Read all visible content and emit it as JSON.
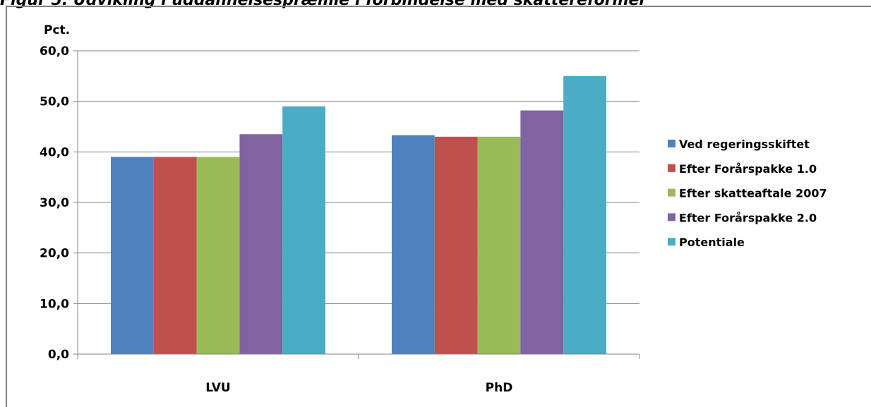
{
  "figure": {
    "title": "Figur 5. Udvikling i uddannelsespræmie i forbindelse med skattereformer"
  },
  "chart_data": {
    "type": "bar",
    "ylabel": "Pct.",
    "xlabel": "",
    "ylim": [
      0,
      60
    ],
    "yticks": [
      "0,0",
      "10,0",
      "20,0",
      "30,0",
      "40,0",
      "50,0",
      "60,0"
    ],
    "grid": true,
    "legend_position": "right",
    "categories": [
      "LVU",
      "PhD"
    ],
    "series": [
      {
        "name": "Ved regeringsskiftet",
        "color": "#4f81bd",
        "values": [
          39.0,
          43.3
        ]
      },
      {
        "name": "Efter Forårspakke 1.0",
        "color": "#c0504d",
        "values": [
          39.0,
          43.0
        ]
      },
      {
        "name": "Efter skatteaftale 2007",
        "color": "#9bbb59",
        "values": [
          39.0,
          43.0
        ]
      },
      {
        "name": "Efter Forårspakke 2.0",
        "color": "#8064a2",
        "values": [
          43.5,
          48.2
        ]
      },
      {
        "name": "Potentiale",
        "color": "#4bacc6",
        "values": [
          49.0,
          55.0
        ]
      }
    ]
  }
}
